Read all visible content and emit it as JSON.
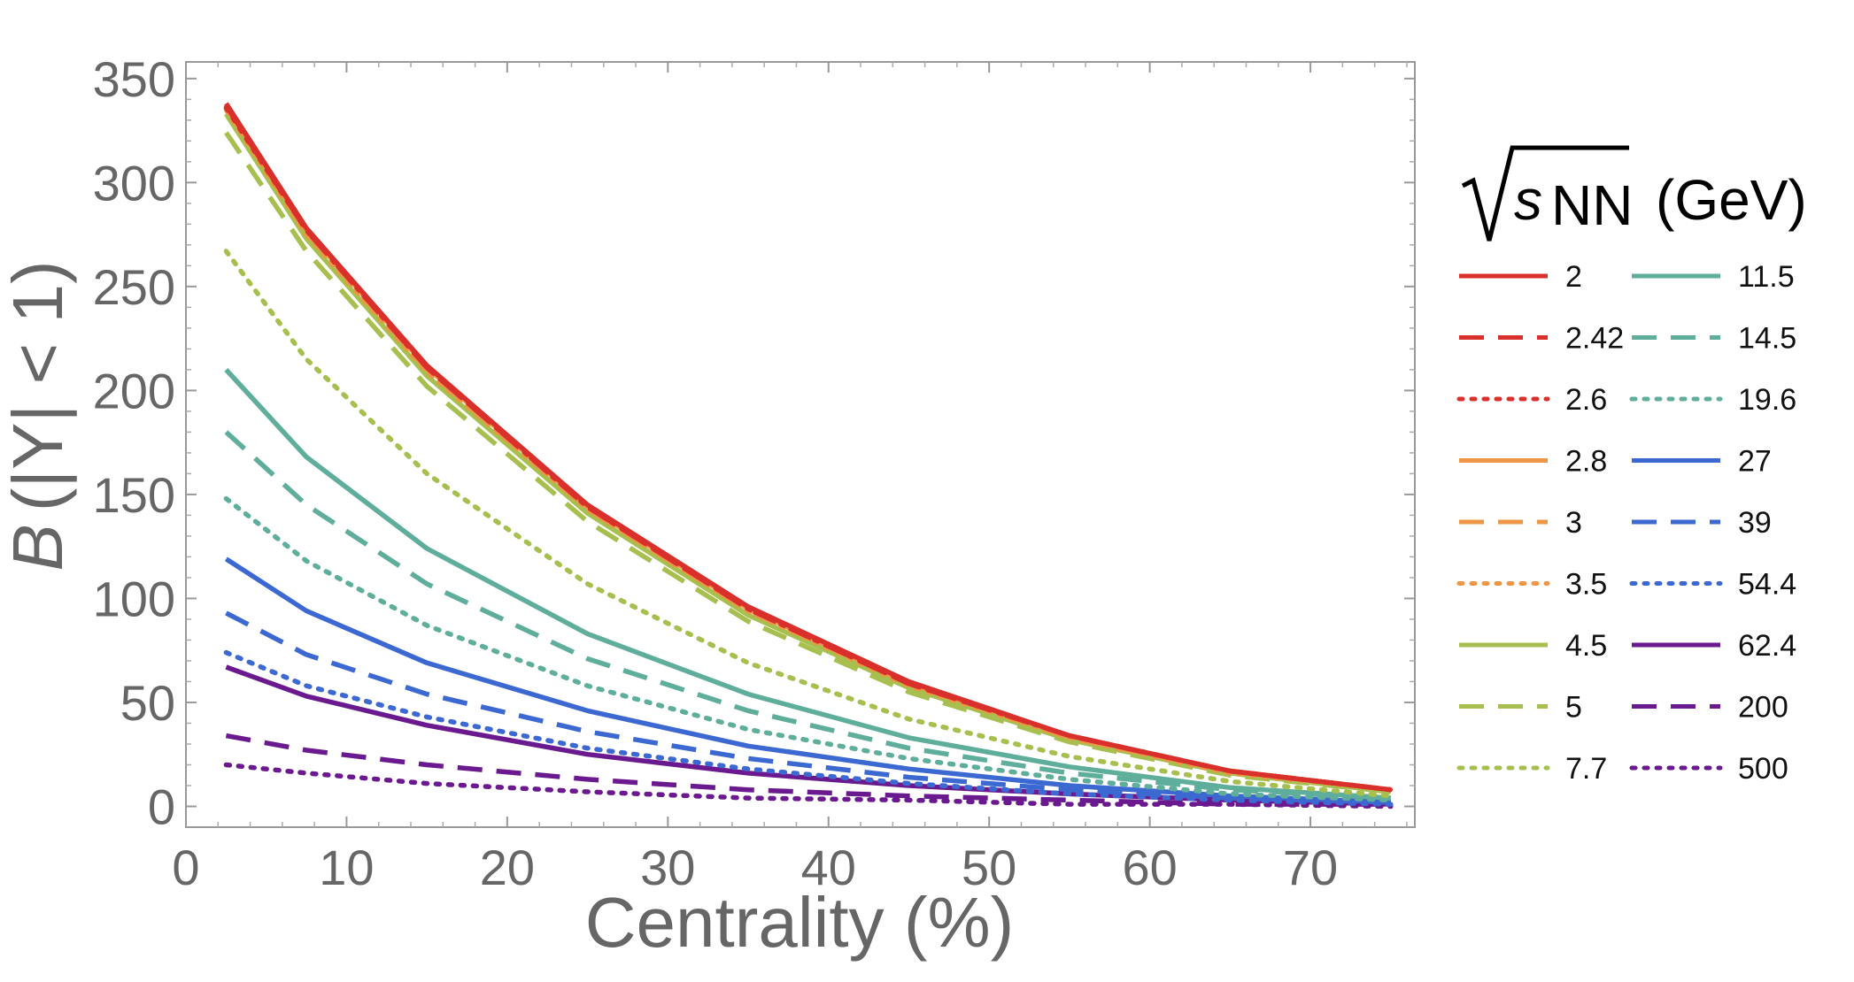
{
  "chart_data": {
    "type": "line",
    "title": "",
    "xlabel": "Centrality (%)",
    "ylabel_var": "B",
    "ylabel_rest": "(|Y| < 1)",
    "xlim": [
      0,
      76.5
    ],
    "ylim": [
      -10,
      358
    ],
    "xticks": [
      0,
      10,
      20,
      30,
      40,
      50,
      60,
      70
    ],
    "yticks": [
      0,
      50,
      100,
      150,
      200,
      250,
      300,
      350
    ],
    "grid": false,
    "legend": {
      "placement": "right",
      "title_sym": "s",
      "title_sub": "NN",
      "title_unit": "(GeV)"
    },
    "x": [
      2.5,
      7.5,
      15,
      25,
      35,
      45,
      55,
      65,
      75
    ],
    "series": [
      {
        "name": "2",
        "color": "#d9302b",
        "style": "solid",
        "values": [
          338,
          278,
          212,
          145,
          96,
          60,
          34,
          17,
          8
        ]
      },
      {
        "name": "2.42",
        "color": "#d9302b",
        "style": "dashed",
        "values": [
          337,
          277,
          211,
          144,
          95,
          59,
          34,
          17,
          8
        ]
      },
      {
        "name": "2.6",
        "color": "#d9302b",
        "style": "dotted",
        "values": [
          336,
          277,
          211,
          144,
          95,
          59,
          34,
          17,
          8
        ]
      },
      {
        "name": "2.8",
        "color": "#ef9646",
        "style": "solid",
        "values": [
          337,
          277,
          211,
          144,
          95,
          59,
          34,
          17,
          8
        ]
      },
      {
        "name": "3",
        "color": "#ef9646",
        "style": "dashed",
        "values": [
          336,
          276,
          210,
          143,
          94,
          59,
          33,
          17,
          8
        ]
      },
      {
        "name": "3.5",
        "color": "#ef9646",
        "style": "dotted",
        "values": [
          335,
          275,
          209,
          143,
          94,
          58,
          33,
          16,
          8
        ]
      },
      {
        "name": "4.5",
        "color": "#a7bf4e",
        "style": "solid",
        "values": [
          333,
          273,
          207,
          141,
          92,
          57,
          32,
          16,
          7
        ]
      },
      {
        "name": "5",
        "color": "#a7bf4e",
        "style": "dashed",
        "values": [
          324,
          267,
          202,
          137,
          89,
          55,
          31,
          15,
          7
        ]
      },
      {
        "name": "7.7",
        "color": "#a7bf4e",
        "style": "dotted",
        "values": [
          267,
          215,
          160,
          107,
          69,
          42,
          24,
          12,
          5
        ]
      },
      {
        "name": "11.5",
        "color": "#5eae9b",
        "style": "solid",
        "values": [
          210,
          168,
          124,
          83,
          54,
          33,
          19,
          9,
          4
        ]
      },
      {
        "name": "14.5",
        "color": "#5eae9b",
        "style": "dashed",
        "values": [
          180,
          145,
          107,
          71,
          46,
          28,
          16,
          8,
          4
        ]
      },
      {
        "name": "19.6",
        "color": "#5eae9b",
        "style": "dotted",
        "values": [
          148,
          118,
          87,
          58,
          37,
          23,
          13,
          6,
          3
        ]
      },
      {
        "name": "27",
        "color": "#3c68d1",
        "style": "solid",
        "values": [
          119,
          94,
          69,
          46,
          29,
          18,
          10,
          5,
          2
        ]
      },
      {
        "name": "39",
        "color": "#3c68d1",
        "style": "dashed",
        "values": [
          93,
          73,
          54,
          36,
          23,
          14,
          8,
          4,
          2
        ]
      },
      {
        "name": "54.4",
        "color": "#3c68d1",
        "style": "dotted",
        "values": [
          74,
          58,
          43,
          28,
          18,
          11,
          6,
          3,
          1
        ]
      },
      {
        "name": "62.4",
        "color": "#6a1a8e",
        "style": "solid",
        "values": [
          67,
          53,
          39,
          25,
          16,
          10,
          6,
          3,
          1
        ]
      },
      {
        "name": "200",
        "color": "#6a1a8e",
        "style": "dashed",
        "values": [
          34,
          27,
          20,
          13,
          8,
          5,
          3,
          1,
          1
        ]
      },
      {
        "name": "500",
        "color": "#6a1a8e",
        "style": "dotted",
        "values": [
          20,
          16,
          11,
          7,
          4,
          3,
          1,
          1,
          0
        ]
      }
    ]
  }
}
